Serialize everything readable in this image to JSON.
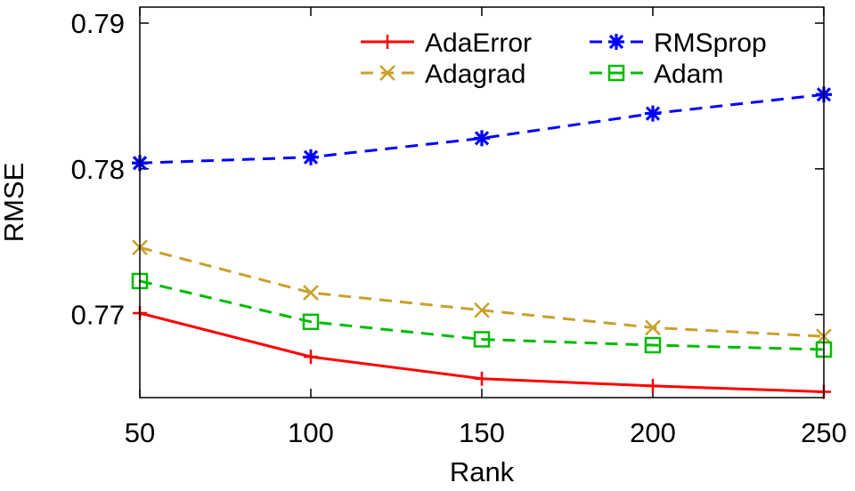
{
  "chart_data": {
    "type": "line",
    "title": "",
    "xlabel": "Rank",
    "ylabel": "RMSE",
    "x": [
      50,
      100,
      150,
      200,
      250
    ],
    "x_ticks": [
      "50",
      "100",
      "150",
      "200",
      "250"
    ],
    "y_ticks": [
      "0.77",
      "0.78",
      "0.79"
    ],
    "xlim": [
      50,
      250
    ],
    "ylim": [
      0.7643,
      0.7911
    ],
    "grid": false,
    "legend_position": "top-right",
    "series": [
      {
        "name": "AdaError",
        "color": "#ff0000",
        "marker": "plus",
        "dash": "solid",
        "values": [
          0.7701,
          0.7671,
          0.7656,
          0.7651,
          0.7647
        ]
      },
      {
        "name": "Adagrad",
        "color": "#c9a02a",
        "marker": "cross",
        "dash": "dashed",
        "values": [
          0.7746,
          0.7715,
          0.7703,
          0.7691,
          0.7685
        ]
      },
      {
        "name": "RMSprop",
        "color": "#0000ff",
        "marker": "star",
        "dash": "dashed",
        "values": [
          0.7804,
          0.7808,
          0.7821,
          0.7838,
          0.7851
        ]
      },
      {
        "name": "Adam",
        "color": "#00bb00",
        "marker": "square",
        "dash": "dashed",
        "values": [
          0.7723,
          0.7695,
          0.7683,
          0.7679,
          0.7676
        ]
      }
    ]
  }
}
